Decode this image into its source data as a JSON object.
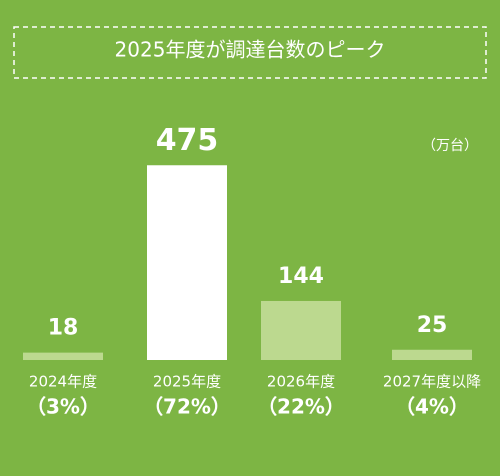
{
  "chart_data": {
    "type": "bar",
    "title": "2025年度が調達台数のピーク",
    "unit": "（万台）",
    "categories": [
      "2024年度",
      "2025年度",
      "2026年度",
      "2027年度以降"
    ],
    "values": [
      18,
      475,
      144,
      25
    ],
    "shares": [
      "（3%）",
      "（72%）",
      "（22%）",
      "（4%）"
    ],
    "colors": [
      "#bcd98f",
      "#ffffff",
      "#bcd98f",
      "#bcd98f"
    ],
    "background": "#7db544"
  }
}
